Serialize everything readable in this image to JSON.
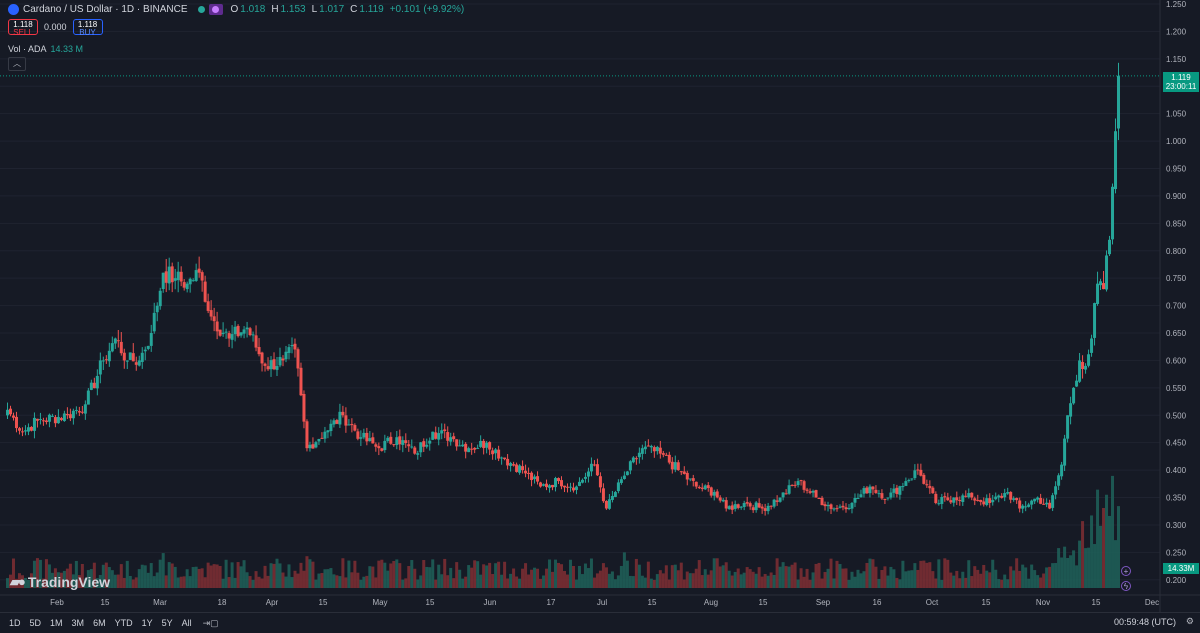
{
  "header": {
    "symbol": "Cardano / US Dollar · 1D · BINANCE",
    "ohlc": {
      "o_label": "O",
      "o": "1.018",
      "h_label": "H",
      "h": "1.153",
      "l_label": "L",
      "l": "1.017",
      "c_label": "C",
      "c": "1.119",
      "chg": "+0.101 (+9.92%)"
    }
  },
  "trade": {
    "sell_price": "1.118",
    "sell_label": "SELL",
    "spread": "0.000",
    "buy_price": "1.118",
    "buy_label": "BUY"
  },
  "volume": {
    "label": "Vol · ADA",
    "value": "14.33 M"
  },
  "collapse_icon": "chevron-up-icon",
  "branding": "TradingView",
  "price_tag": {
    "price": "1.119",
    "countdown": "23:00:11"
  },
  "volume_tag": "14.33M",
  "bottom": {
    "ranges": [
      "1D",
      "5D",
      "1M",
      "3M",
      "6M",
      "YTD",
      "1Y",
      "5Y",
      "All"
    ],
    "goto_icon": "calendar-goto-icon",
    "clock": "00:59:48 (UTC)",
    "settings_icon": "gear-icon"
  },
  "colors": {
    "up": "#26a69a",
    "down": "#ef5350",
    "background": "#161a25",
    "last_price": "#089981"
  },
  "chart_data": {
    "type": "candlestick",
    "y_axis": {
      "ticks": [
        1.25,
        1.2,
        1.15,
        1.1,
        1.05,
        1.0,
        0.95,
        0.9,
        0.85,
        0.8,
        0.75,
        0.7,
        0.65,
        0.6,
        0.55,
        0.5,
        0.45,
        0.4,
        0.35,
        0.3,
        0.25,
        0.2
      ],
      "range": [
        0.185,
        1.25
      ]
    },
    "x_axis": {
      "ticks": [
        "Feb",
        "15",
        "Mar",
        "18",
        "Apr",
        "15",
        "May",
        "15",
        "Jun",
        "17",
        "Jul",
        "15",
        "Aug",
        "15",
        "Sep",
        "16",
        "Oct",
        "15",
        "Nov",
        "15",
        "Dec"
      ]
    },
    "last_price": 1.119,
    "close_anchors": [
      [
        0,
        0.51
      ],
      [
        5,
        0.47
      ],
      [
        10,
        0.49
      ],
      [
        20,
        0.5
      ],
      [
        26,
        0.52
      ],
      [
        32,
        0.6
      ],
      [
        36,
        0.64
      ],
      [
        40,
        0.6
      ],
      [
        44,
        0.6
      ],
      [
        48,
        0.65
      ],
      [
        52,
        0.76
      ],
      [
        56,
        0.75
      ],
      [
        60,
        0.74
      ],
      [
        64,
        0.76
      ],
      [
        68,
        0.68
      ],
      [
        74,
        0.64
      ],
      [
        80,
        0.66
      ],
      [
        86,
        0.59
      ],
      [
        92,
        0.6
      ],
      [
        96,
        0.62
      ],
      [
        100,
        0.44
      ],
      [
        106,
        0.47
      ],
      [
        112,
        0.5
      ],
      [
        118,
        0.46
      ],
      [
        124,
        0.44
      ],
      [
        130,
        0.46
      ],
      [
        136,
        0.43
      ],
      [
        142,
        0.47
      ],
      [
        148,
        0.46
      ],
      [
        154,
        0.44
      ],
      [
        160,
        0.45
      ],
      [
        166,
        0.42
      ],
      [
        172,
        0.4
      ],
      [
        178,
        0.37
      ],
      [
        184,
        0.38
      ],
      [
        190,
        0.37
      ],
      [
        196,
        0.41
      ],
      [
        200,
        0.33
      ],
      [
        206,
        0.39
      ],
      [
        212,
        0.44
      ],
      [
        218,
        0.43
      ],
      [
        224,
        0.4
      ],
      [
        230,
        0.37
      ],
      [
        236,
        0.36
      ],
      [
        240,
        0.33
      ],
      [
        246,
        0.34
      ],
      [
        252,
        0.33
      ],
      [
        258,
        0.35
      ],
      [
        264,
        0.38
      ],
      [
        270,
        0.35
      ],
      [
        276,
        0.33
      ],
      [
        282,
        0.34
      ],
      [
        288,
        0.37
      ],
      [
        294,
        0.35
      ],
      [
        300,
        0.38
      ],
      [
        304,
        0.4
      ],
      [
        310,
        0.34
      ],
      [
        316,
        0.35
      ],
      [
        322,
        0.35
      ],
      [
        328,
        0.34
      ],
      [
        334,
        0.36
      ],
      [
        338,
        0.33
      ],
      [
        344,
        0.35
      ],
      [
        348,
        0.33
      ],
      [
        352,
        0.41
      ],
      [
        354,
        0.5
      ],
      [
        356,
        0.55
      ],
      [
        358,
        0.6
      ],
      [
        360,
        0.59
      ],
      [
        362,
        0.64
      ],
      [
        364,
        0.74
      ],
      [
        366,
        0.73
      ],
      [
        368,
        0.82
      ],
      [
        370,
        1.018
      ],
      [
        371,
        1.119
      ]
    ]
  }
}
